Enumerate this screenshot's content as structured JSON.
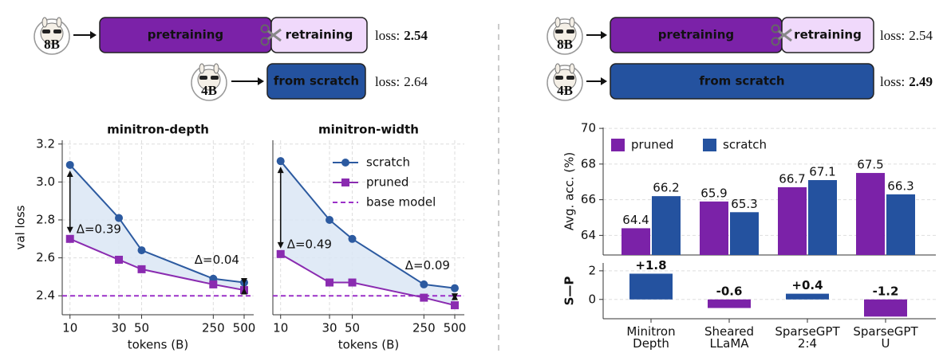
{
  "diagrams": [
    {
      "pretraining": "pretraining",
      "retraining": "retraining",
      "from_scratch": "from scratch",
      "pruned_size": "8B",
      "scratch_size": "4B",
      "loss_label": "loss:",
      "pruned_loss": 2.54,
      "scratch_loss": 2.64,
      "best": "pruned"
    },
    {
      "pretraining": "pretraining",
      "retraining": "retraining",
      "from_scratch": "from scratch",
      "pruned_size": "8B",
      "scratch_size": "4B",
      "loss_label": "loss:",
      "pruned_loss": 2.54,
      "scratch_loss": 2.49,
      "best": "scratch"
    }
  ],
  "chart_data": [
    {
      "type": "line",
      "title": "minitron-depth",
      "xlabel": "tokens (B)",
      "ylabel": "val loss",
      "x": [
        10,
        30,
        50,
        250,
        500
      ],
      "xscale": "log",
      "xlim": [
        8.4,
        620
      ],
      "xticks": [
        10,
        30,
        50,
        250,
        500
      ],
      "ylim": [
        2.3,
        3.22
      ],
      "yticks": [
        2.4,
        2.6,
        2.8,
        {
          "value": 3,
          "label": "3.0"
        },
        3.2
      ],
      "grid": true,
      "series": [
        {
          "name": "scratch",
          "color": "#2c5aa0",
          "marker": "circle",
          "values": [
            3.09,
            2.81,
            2.64,
            2.49,
            2.47
          ]
        },
        {
          "name": "pruned",
          "color": "#8a2bb0",
          "marker": "square",
          "values": [
            2.7,
            2.59,
            2.54,
            2.46,
            2.43
          ]
        }
      ],
      "reference": {
        "name": "base model",
        "value": 2.4,
        "color": "#9b30c8"
      },
      "annotations": [
        "Δ=0.39",
        "Δ=0.04"
      ]
    },
    {
      "type": "line",
      "title": "minitron-width",
      "xlabel": "tokens (B)",
      "x": [
        10,
        30,
        50,
        250,
        500
      ],
      "xscale": "log",
      "xlim": [
        8.4,
        620
      ],
      "xticks": [
        10,
        30,
        50,
        250,
        500
      ],
      "ylim": [
        2.3,
        3.22
      ],
      "yticks": [
        2.4,
        2.6,
        2.8,
        3,
        3.2
      ],
      "sharey": true,
      "grid": true,
      "legend": "upper right",
      "series": [
        {
          "name": "scratch",
          "color": "#2c5aa0",
          "marker": "circle",
          "values": [
            3.11,
            2.8,
            2.7,
            2.46,
            2.44
          ]
        },
        {
          "name": "pruned",
          "color": "#8a2bb0",
          "marker": "square",
          "values": [
            2.62,
            2.47,
            2.47,
            2.39,
            2.35
          ]
        }
      ],
      "reference": {
        "name": "base model",
        "value": 2.4,
        "color": "#9b30c8"
      },
      "annotations": [
        "Δ=0.49",
        "Δ=0.09"
      ]
    },
    {
      "type": "bar",
      "ylabel": "Avg. acc. (%)",
      "ylim": [
        62.9,
        70.05
      ],
      "yticks": [
        64,
        66,
        68,
        70
      ],
      "grid": true,
      "legend": "upper left",
      "series": [
        {
          "name": "pruned",
          "color": "#7b22a8",
          "values": [
            64.4,
            65.9,
            66.7,
            67.5
          ]
        },
        {
          "name": "scratch",
          "color": "#24529f",
          "values": [
            66.2,
            65.3,
            67.1,
            66.3
          ]
        }
      ]
    },
    {
      "type": "diffbar",
      "ylabel": "S—P",
      "categories": [
        "Minitron Depth",
        "Sheared LLaMA",
        "SparseGPT 2:4",
        "SparseGPT U"
      ],
      "values": [
        1.8,
        -0.6,
        0.4,
        -1.2
      ],
      "value_labels": [
        "+1.8",
        "-0.6",
        "+0.4",
        "-1.2"
      ],
      "colors": [
        "#24529f",
        "#7b22a8",
        "#24529f",
        "#7b22a8"
      ],
      "ylim": [
        -1.35,
        2.55
      ],
      "yticks": [
        0,
        2
      ],
      "grid": true
    }
  ]
}
